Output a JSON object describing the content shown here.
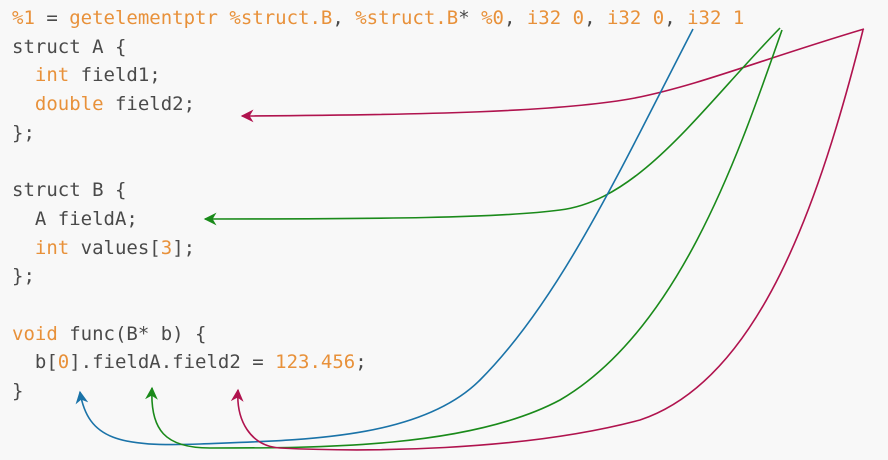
{
  "colors": {
    "text": "#4a4a4a",
    "keyword": "#e8913a",
    "arrow_blue": "#1a73a8",
    "arrow_green": "#1a8a1a",
    "arrow_crimson": "#b0134e"
  },
  "code": {
    "lines": [
      [
        {
          "t": "%1",
          "c": "kw"
        },
        {
          "t": " = ",
          "c": "plain"
        },
        {
          "t": "getelementptr",
          "c": "kw"
        },
        {
          "t": " ",
          "c": "plain"
        },
        {
          "t": "%struct.B",
          "c": "kw"
        },
        {
          "t": ", ",
          "c": "plain"
        },
        {
          "t": "%struct.B",
          "c": "kw"
        },
        {
          "t": "* ",
          "c": "plain"
        },
        {
          "t": "%0",
          "c": "kw"
        },
        {
          "t": ", ",
          "c": "plain"
        },
        {
          "t": "i32",
          "c": "kw"
        },
        {
          "t": " ",
          "c": "plain"
        },
        {
          "t": "0",
          "c": "num"
        },
        {
          "t": ", ",
          "c": "plain"
        },
        {
          "t": "i32",
          "c": "kw"
        },
        {
          "t": " ",
          "c": "plain"
        },
        {
          "t": "0",
          "c": "num"
        },
        {
          "t": ", ",
          "c": "plain"
        },
        {
          "t": "i32",
          "c": "kw"
        },
        {
          "t": " ",
          "c": "plain"
        },
        {
          "t": "1",
          "c": "num"
        }
      ],
      [
        {
          "t": "struct A {",
          "c": "plain"
        }
      ],
      [
        {
          "t": "  ",
          "c": "plain"
        },
        {
          "t": "int",
          "c": "kw"
        },
        {
          "t": " field1;",
          "c": "plain"
        }
      ],
      [
        {
          "t": "  ",
          "c": "plain"
        },
        {
          "t": "double",
          "c": "kw"
        },
        {
          "t": " field2;",
          "c": "plain"
        }
      ],
      [
        {
          "t": "};",
          "c": "plain"
        }
      ],
      [],
      [
        {
          "t": "struct B {",
          "c": "plain"
        }
      ],
      [
        {
          "t": "  A fieldA;",
          "c": "plain"
        }
      ],
      [
        {
          "t": "  ",
          "c": "plain"
        },
        {
          "t": "int",
          "c": "kw"
        },
        {
          "t": " values[",
          "c": "plain"
        },
        {
          "t": "3",
          "c": "num"
        },
        {
          "t": "];",
          "c": "plain"
        }
      ],
      [
        {
          "t": "};",
          "c": "plain"
        }
      ],
      [],
      [
        {
          "t": "void",
          "c": "kw"
        },
        {
          "t": " func(B* b) {",
          "c": "plain"
        }
      ],
      [
        {
          "t": "  b[",
          "c": "plain"
        },
        {
          "t": "0",
          "c": "num"
        },
        {
          "t": "].fieldA.field2 = ",
          "c": "plain"
        },
        {
          "t": "123.456",
          "c": "num"
        },
        {
          "t": ";",
          "c": "plain"
        }
      ],
      [
        {
          "t": "}",
          "c": "plain"
        }
      ]
    ]
  }
}
